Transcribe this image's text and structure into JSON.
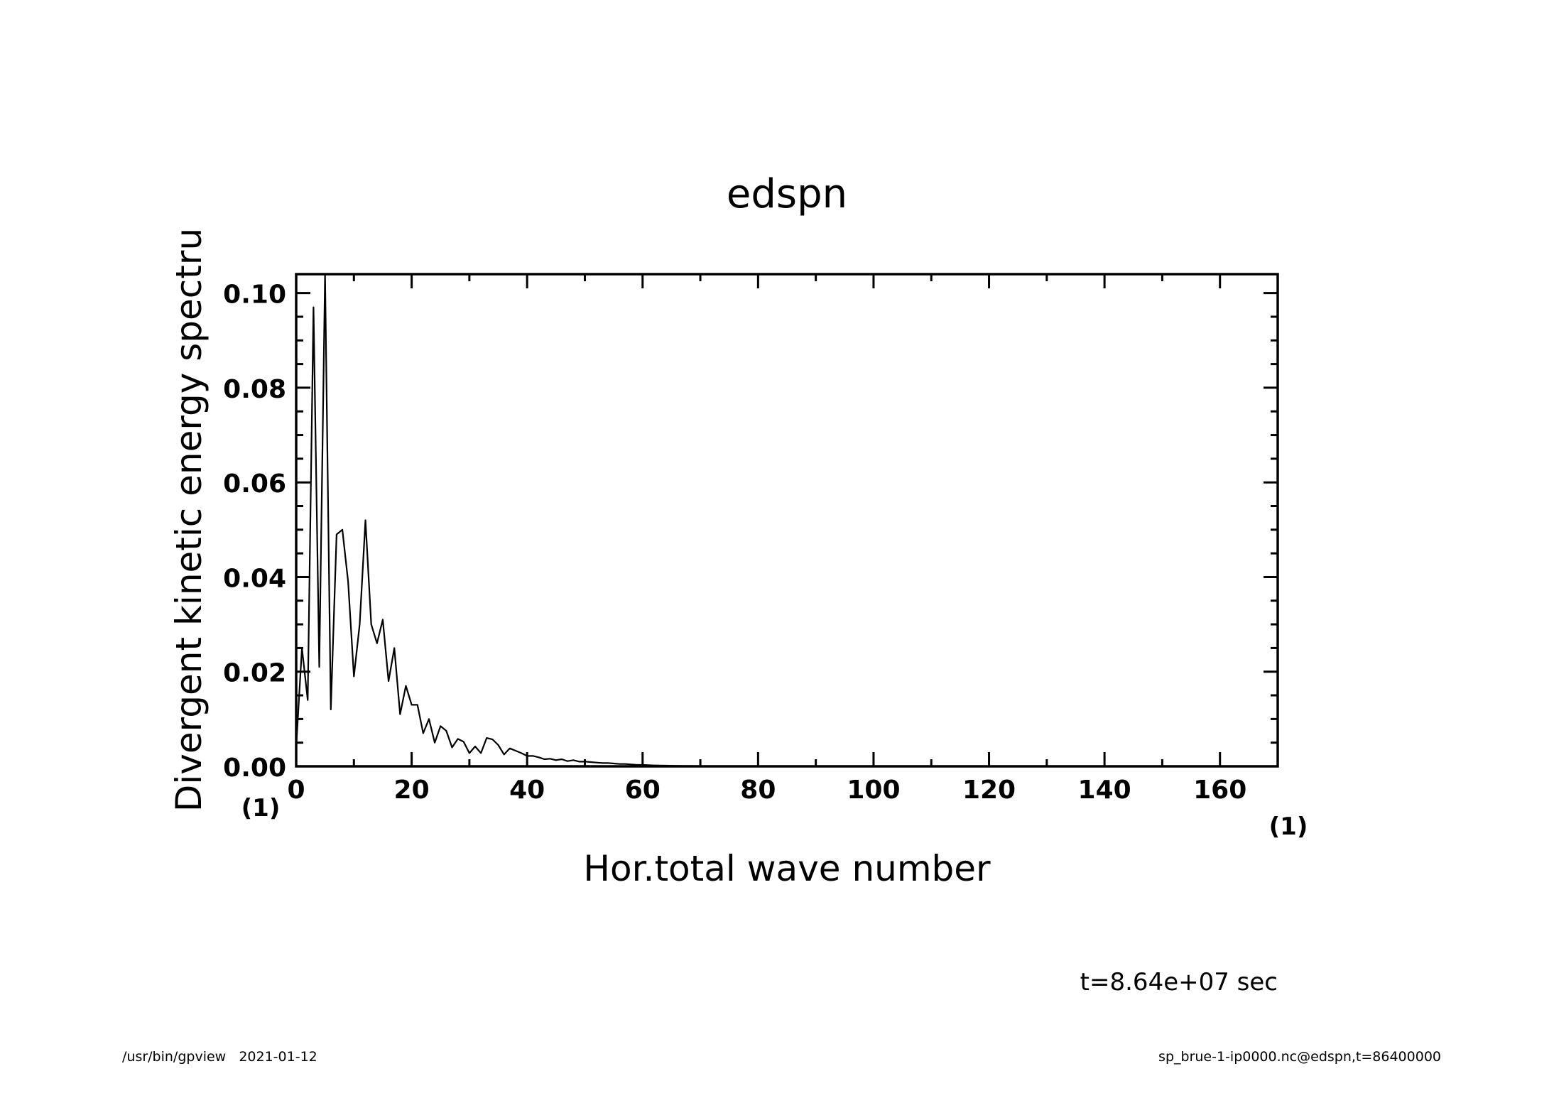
{
  "chart_data": {
    "type": "line",
    "title": "edspn",
    "xlabel": "Hor.total wave number",
    "ylabel": "Divergent kinetic energy spectru",
    "x_unit": "(1)",
    "y_unit": "(1)",
    "xlim": [
      0,
      170
    ],
    "ylim": [
      0,
      0.104
    ],
    "x_ticks": [
      0,
      20,
      40,
      60,
      80,
      100,
      120,
      140,
      160
    ],
    "x_tick_labels": [
      "0",
      "20",
      "40",
      "60",
      "80",
      "100",
      "120",
      "140",
      "160"
    ],
    "y_ticks": [
      0,
      0.02,
      0.04,
      0.06,
      0.08,
      0.1
    ],
    "y_tick_labels": [
      "0.00",
      "0.02",
      "0.04",
      "0.06",
      "0.08",
      "0.10"
    ],
    "grid": false,
    "line_color": "#000000",
    "series": [
      {
        "x": [
          0,
          1,
          2,
          3,
          4,
          5,
          6,
          7,
          8,
          9,
          10,
          11,
          12,
          13,
          14,
          15,
          16,
          17,
          18,
          19,
          20,
          21,
          22,
          23,
          24,
          25,
          26,
          27,
          28,
          29,
          30,
          31,
          32,
          33,
          34,
          35,
          36,
          37,
          38,
          39,
          40,
          41,
          42,
          43,
          44,
          45,
          46,
          47,
          48,
          49,
          50,
          51,
          52,
          53,
          54,
          55,
          56,
          57,
          58,
          59,
          60,
          62,
          64,
          66,
          68,
          70,
          75,
          80,
          90,
          100,
          110,
          120,
          130,
          140,
          150,
          160,
          170
        ],
        "y": [
          0.004,
          0.025,
          0.014,
          0.097,
          0.021,
          0.104,
          0.012,
          0.049,
          0.05,
          0.039,
          0.019,
          0.03,
          0.052,
          0.03,
          0.026,
          0.031,
          0.018,
          0.025,
          0.011,
          0.017,
          0.013,
          0.013,
          0.007,
          0.01,
          0.005,
          0.0085,
          0.0075,
          0.004,
          0.0058,
          0.0052,
          0.0028,
          0.0042,
          0.0028,
          0.006,
          0.0057,
          0.0045,
          0.0025,
          0.0038,
          0.0033,
          0.0028,
          0.0022,
          0.0022,
          0.0019,
          0.0015,
          0.0016,
          0.0013,
          0.0015,
          0.0011,
          0.0013,
          0.001,
          0.001,
          0.0009,
          0.0008,
          0.0007,
          0.0007,
          0.0006,
          0.0005,
          0.0005,
          0.0004,
          0.0003,
          0.0003,
          0.0002,
          0.00015,
          0.0001,
          8e-05,
          6e-05,
          3e-05,
          2e-05,
          1e-05,
          0,
          0,
          0,
          0,
          0,
          0,
          0,
          0
        ]
      }
    ]
  },
  "annotation": {
    "time_label": "t=8.64e+07 sec"
  },
  "footer": {
    "left": "/usr/bin/gpview   2021-01-12",
    "right": "sp_brue-1-ip0000.nc@edspn,t=86400000"
  }
}
